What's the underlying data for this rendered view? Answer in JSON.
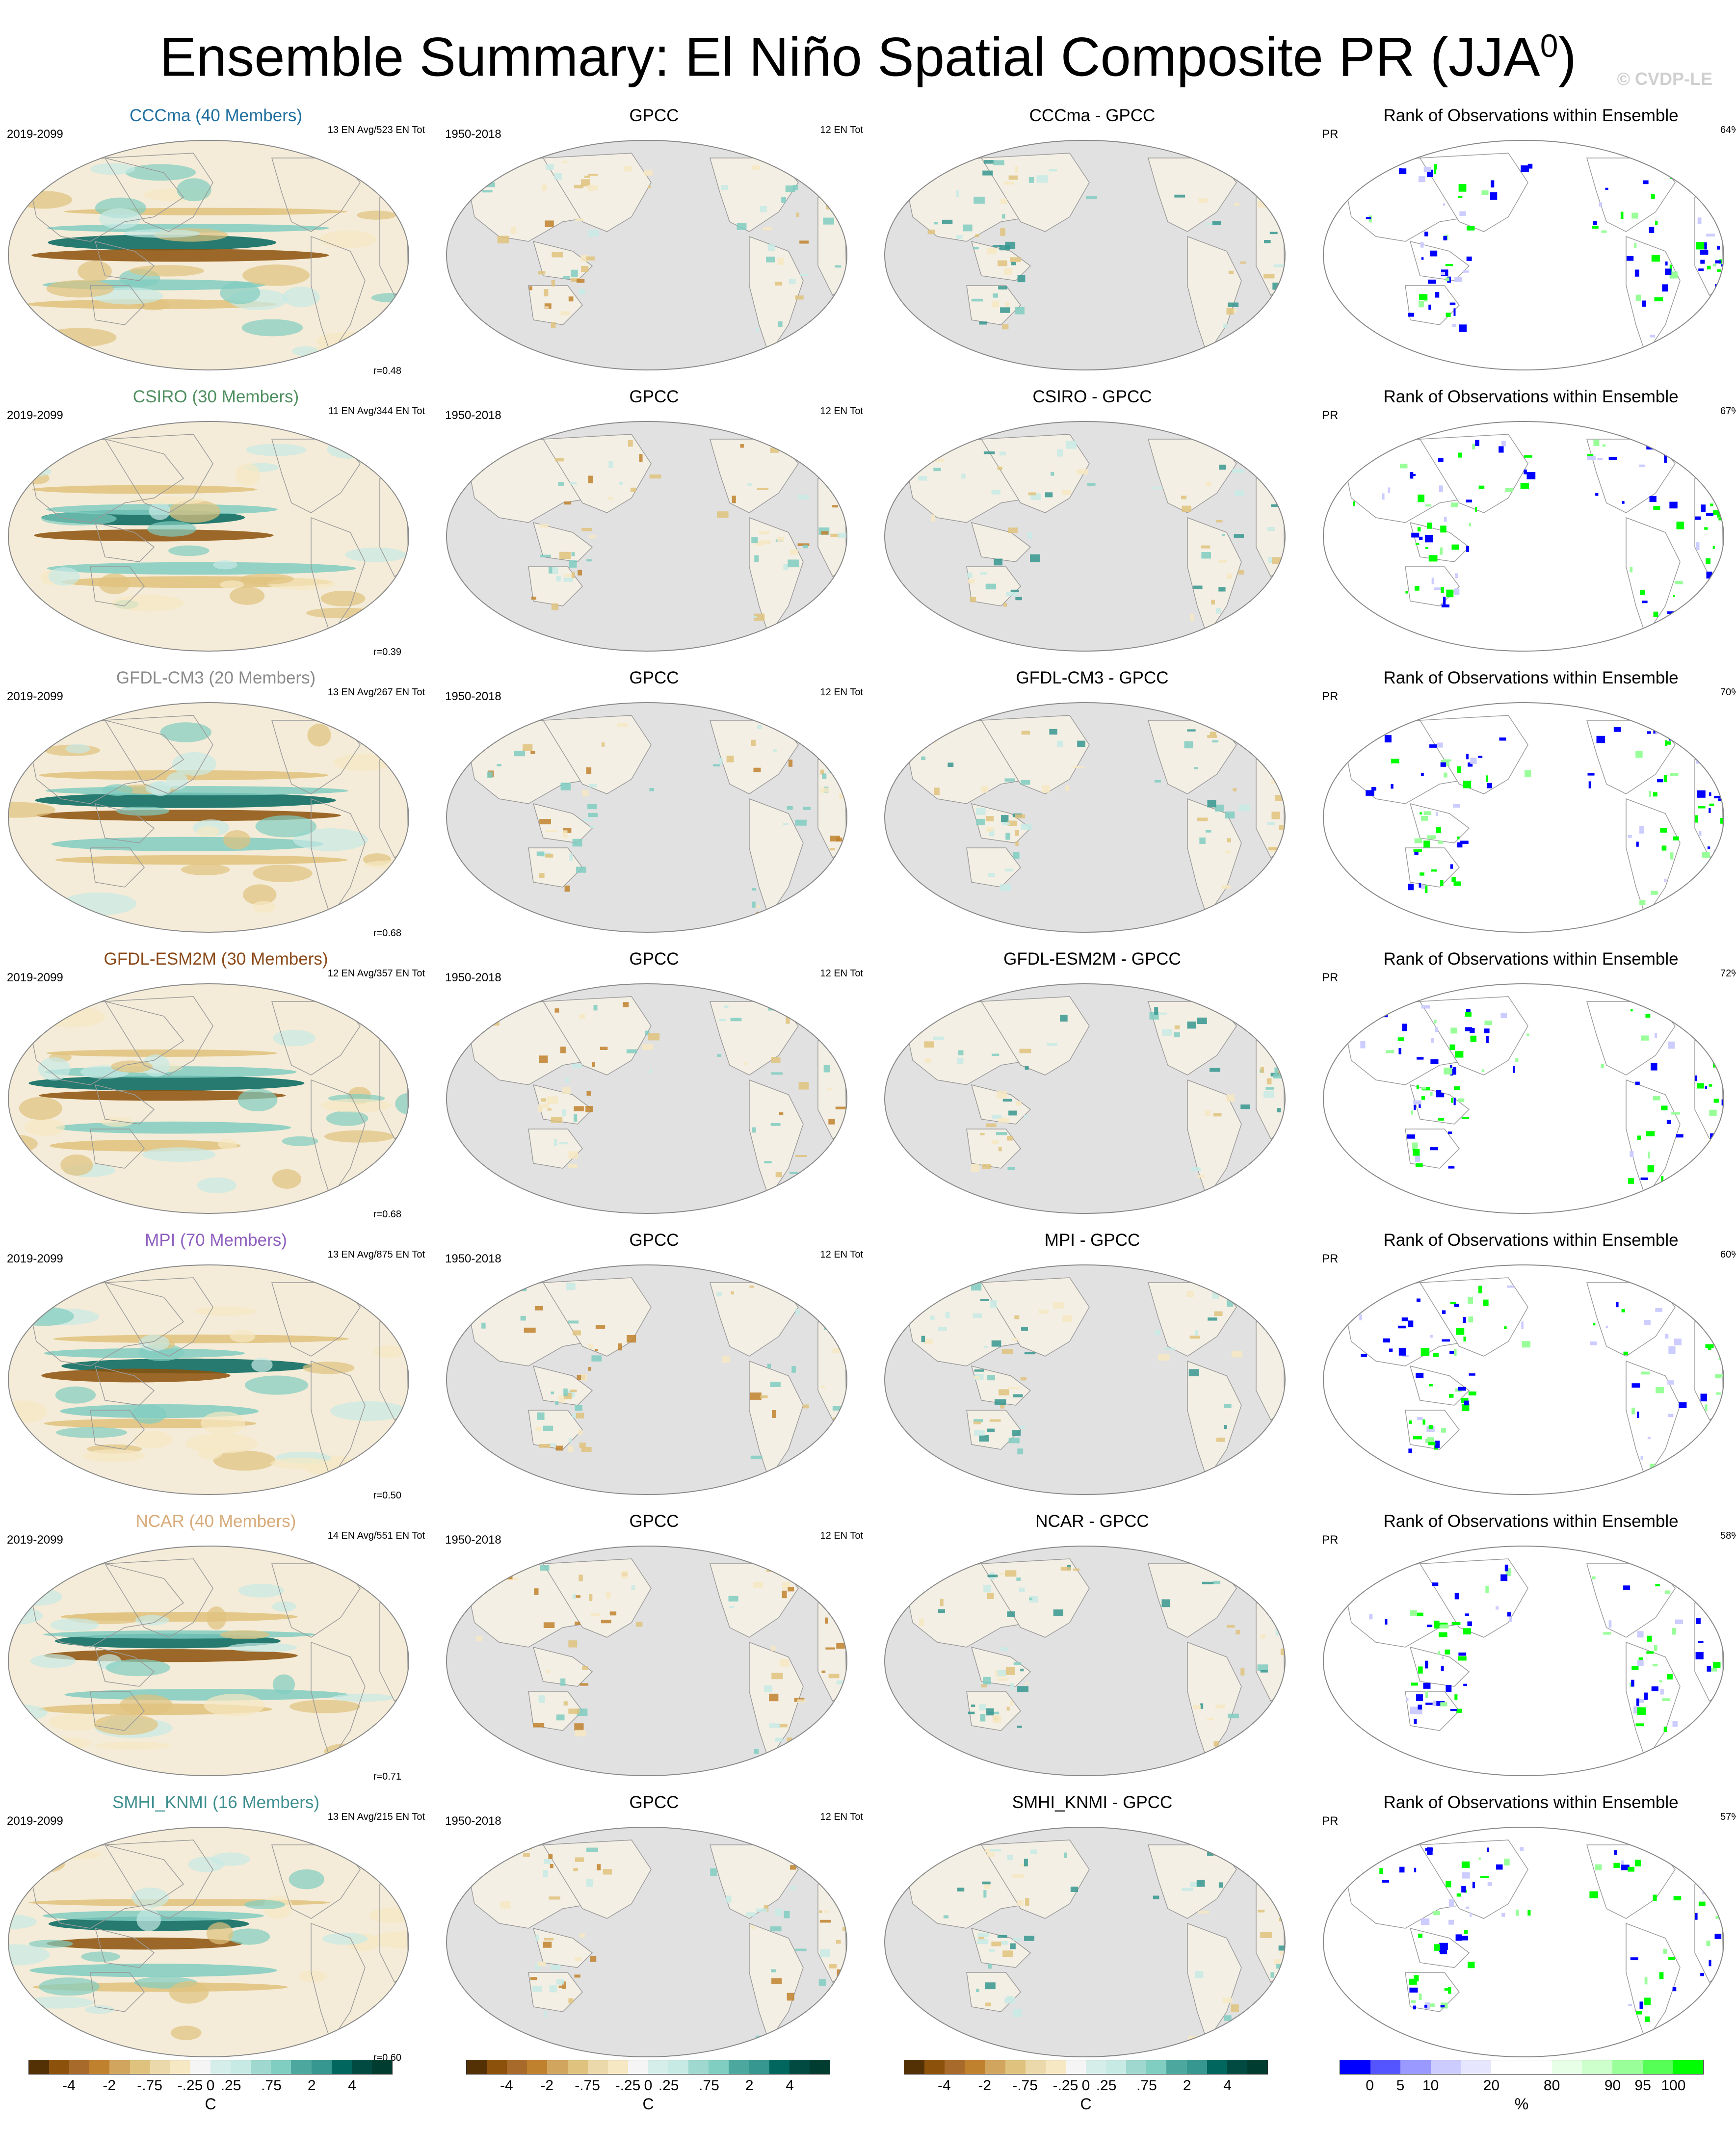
{
  "title": "Ensemble Summary: El Niño Spatial Composite PR (JJA",
  "title_sup": "0",
  "title_end": ")",
  "watermark": "© CVDP-LE",
  "rows": [
    {
      "model": "CCCma (40 Members)",
      "model_color": "#1f6f9f",
      "period": "2019-2099",
      "avg": "13 EN Avg/523 EN Tot",
      "corr": "r=0.48",
      "diff_title": "CCCma - GPCC",
      "rank_pct": "64%"
    },
    {
      "model": "CSIRO (30 Members)",
      "model_color": "#4f8f5f",
      "period": "2019-2099",
      "avg": "11 EN Avg/344 EN Tot",
      "corr": "r=0.39",
      "diff_title": "CSIRO - GPCC",
      "rank_pct": "67%"
    },
    {
      "model": "GFDL-CM3 (20 Members)",
      "model_color": "#8a8a8a",
      "period": "2019-2099",
      "avg": "13 EN Avg/267 EN Tot",
      "corr": "r=0.68",
      "diff_title": "GFDL-CM3 - GPCC",
      "rank_pct": "70%"
    },
    {
      "model": "GFDL-ESM2M (30 Members)",
      "model_color": "#8b4a1a",
      "period": "2019-2099",
      "avg": "12 EN Avg/357 EN Tot",
      "corr": "r=0.68",
      "diff_title": "GFDL-ESM2M - GPCC",
      "rank_pct": "72%"
    },
    {
      "model": "MPI (70 Members)",
      "model_color": "#8f5fbf",
      "period": "2019-2099",
      "avg": "13 EN Avg/875 EN Tot",
      "corr": "r=0.50",
      "diff_title": "MPI - GPCC",
      "rank_pct": "60%"
    },
    {
      "model": "NCAR (40 Members)",
      "model_color": "#d8ab7a",
      "period": "2019-2099",
      "avg": "14 EN Avg/551 EN Tot",
      "corr": "r=0.71",
      "diff_title": "NCAR - GPCC",
      "rank_pct": "58%"
    },
    {
      "model": "SMHI_KNMI (16 Members)",
      "model_color": "#3f8f8f",
      "period": "2019-2099",
      "avg": "13 EN Avg/215 EN Tot",
      "corr": "r=0.60",
      "diff_title": "SMHI_KNMI - GPCC",
      "rank_pct": "57%"
    }
  ],
  "obs": {
    "title": "GPCC",
    "period": "1950-2018",
    "count": "12 EN Tot"
  },
  "rank": {
    "title": "Rank of Observations within Ensemble",
    "var": "PR"
  },
  "colorbar": {
    "div_colors": [
      "#543005",
      "#8c510a",
      "#a86a2a",
      "#bf812d",
      "#d2a55f",
      "#dfc27d",
      "#ecd9ab",
      "#f6e8c3",
      "#f5f5f5",
      "#d5eeea",
      "#c7eae5",
      "#9ed8cf",
      "#80cdc1",
      "#4ca89e",
      "#35978f",
      "#01665e",
      "#014a42",
      "#003c30"
    ],
    "div_ticks": [
      "-4",
      "-2",
      "-.75",
      "-.25",
      "0",
      ".25",
      ".75",
      "2",
      "4"
    ],
    "div_unit": "C",
    "rank_colors": [
      "#0000ff",
      "#5555ff",
      "#9999ff",
      "#ccccff",
      "#e6e6ff",
      "#ffffff",
      "#ffffff",
      "#e6ffe6",
      "#ccffcc",
      "#99ff99",
      "#55ff55",
      "#00ff00"
    ],
    "rank_ticks": [
      "0",
      "5",
      "10",
      "20",
      "80",
      "90",
      "95",
      "100"
    ],
    "rank_unit": "%"
  }
}
